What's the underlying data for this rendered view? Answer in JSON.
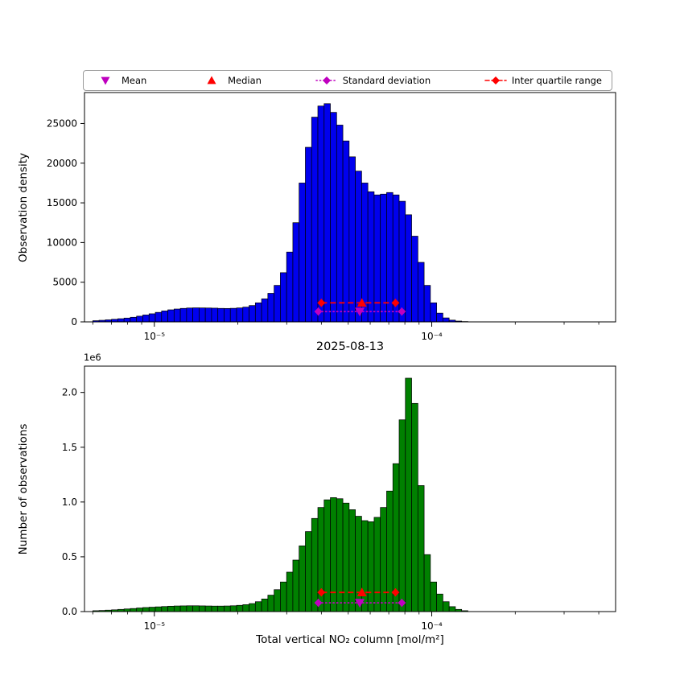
{
  "figure": {
    "title": "2025-08-13",
    "xlabel": "Total vertical NO₂ column [mol/m²]",
    "background": "#ffffff"
  },
  "legend": {
    "items": [
      {
        "label": "Mean",
        "marker": "triangle-down",
        "color": "#bf00bf",
        "line": "none"
      },
      {
        "label": "Median",
        "marker": "triangle-up",
        "color": "#ff0000",
        "line": "none"
      },
      {
        "label": "Standard deviation",
        "marker": "diamond",
        "color": "#bf00bf",
        "line": "dotted"
      },
      {
        "label": "Inter quartile range",
        "marker": "diamond",
        "color": "#ff0000",
        "line": "dashed"
      }
    ]
  },
  "chart_data": [
    {
      "type": "bar",
      "name": "observation-density-histogram",
      "ylabel": "Observation density",
      "bar_color": "#0000ee",
      "edge_color": "#000000",
      "x_scale": "log",
      "xlim": [
        5.6e-06,
        0.00046
      ],
      "ylim": [
        0,
        28900
      ],
      "xticks": [
        1e-05,
        0.0001
      ],
      "xtick_labels": [
        "10⁻⁵",
        "10⁻⁴"
      ],
      "yticks": [
        0,
        5000,
        10000,
        15000,
        20000,
        25000
      ],
      "ytick_labels": [
        "0",
        "5000",
        "10000",
        "15000",
        "20000",
        "25000"
      ],
      "bins": {
        "x_start": 6e-06,
        "x_end": 0.000135,
        "count": 60,
        "heights": [
          150,
          200,
          260,
          330,
          400,
          480,
          580,
          720,
          870,
          1020,
          1200,
          1380,
          1520,
          1620,
          1700,
          1750,
          1770,
          1760,
          1750,
          1730,
          1700,
          1690,
          1710,
          1760,
          1860,
          2060,
          2400,
          2900,
          3600,
          4600,
          6200,
          8800,
          12500,
          17500,
          22000,
          25800,
          27200,
          27500,
          26400,
          24800,
          22800,
          20800,
          19000,
          17500,
          16400,
          16000,
          16100,
          16300,
          16000,
          15200,
          13500,
          10800,
          7500,
          4600,
          2400,
          1100,
          500,
          220,
          100,
          40
        ]
      },
      "markers": {
        "mean": 5.5e-05,
        "median": 5.6e-05,
        "iqr_range": [
          4e-05,
          7.4e-05
        ],
        "std_range": [
          3.9e-05,
          7.8e-05
        ],
        "iqr_y": 2400,
        "std_y": 1300,
        "mean_color": "#bf00bf",
        "median_color": "#ff0000"
      }
    },
    {
      "type": "bar",
      "name": "number-of-observations-histogram",
      "ylabel": "Number of observations",
      "y_offset_label": "1e6",
      "bar_color": "#008000",
      "edge_color": "#000000",
      "x_scale": "log",
      "xlim": [
        5.6e-06,
        0.00046
      ],
      "ylim": [
        0,
        2240000
      ],
      "xticks": [
        1e-05,
        0.0001
      ],
      "xtick_labels": [
        "10⁻⁵",
        "10⁻⁴"
      ],
      "yticks": [
        0,
        500000,
        1000000,
        1500000,
        2000000
      ],
      "ytick_labels": [
        "0.0",
        "0.5",
        "1.0",
        "1.5",
        "2.0"
      ],
      "bins": {
        "x_start": 6e-06,
        "x_end": 0.000135,
        "count": 60,
        "heights": [
          8000,
          10000,
          13000,
          16000,
          20000,
          24000,
          28000,
          33000,
          37000,
          40000,
          43000,
          46000,
          49000,
          51000,
          52000,
          53000,
          53000,
          52000,
          51000,
          50000,
          50000,
          51000,
          53000,
          57000,
          63000,
          73000,
          90000,
          115000,
          150000,
          200000,
          270000,
          360000,
          470000,
          600000,
          730000,
          850000,
          950000,
          1020000,
          1040000,
          1030000,
          990000,
          930000,
          870000,
          830000,
          820000,
          860000,
          950000,
          1100000,
          1350000,
          1750000,
          2130000,
          1900000,
          1150000,
          520000,
          270000,
          160000,
          90000,
          45000,
          20000,
          8000
        ]
      },
      "markers": {
        "mean": 5.5e-05,
        "median": 5.6e-05,
        "iqr_range": [
          4e-05,
          7.4e-05
        ],
        "std_range": [
          3.9e-05,
          7.8e-05
        ],
        "iqr_y": 175000,
        "std_y": 80000,
        "mean_color": "#bf00bf",
        "median_color": "#ff0000"
      }
    }
  ]
}
